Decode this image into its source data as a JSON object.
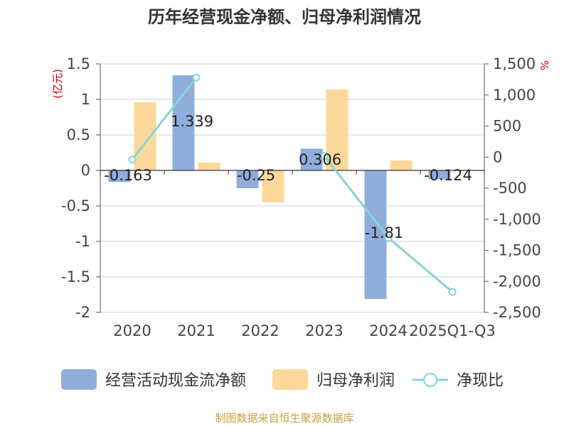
{
  "title": "历年经营现金净额、归母净利润情况",
  "source": "制图数据来自恒生聚源数据库",
  "chart_data": {
    "type": "bar",
    "title": "历年经营现金净额、归母净利润情况",
    "categories": [
      "2020",
      "2021",
      "2022",
      "2023",
      "2024",
      "2025Q1-Q3"
    ],
    "y_left": {
      "unit_label": "(亿元)",
      "ylim": [
        -2,
        1.5
      ],
      "ticks": [
        1.5,
        1,
        0.5,
        0,
        -0.5,
        -1,
        -1.5,
        -2
      ],
      "tick_labels": [
        "1.5",
        "1",
        "0.5",
        "0",
        "-0.5",
        "-1",
        "-1.5",
        "-2"
      ]
    },
    "y_right": {
      "unit_label": "%",
      "ylim": [
        -2500,
        1500
      ],
      "ticks": [
        1500,
        1000,
        500,
        0,
        -500,
        -1000,
        -1500,
        -2000,
        -2500
      ],
      "tick_labels": [
        "1,500",
        "1,000",
        "500",
        "0",
        "-500",
        "-1,000",
        "-1,500",
        "-2,000",
        "-2,500"
      ]
    },
    "grid": true,
    "legend_position": "bottom",
    "series": [
      {
        "name": "经营活动现金流净额",
        "type": "bar",
        "axis": "left",
        "color": "#8faedb",
        "values": [
          -0.163,
          1.339,
          -0.25,
          0.306,
          -1.81,
          -0.124
        ],
        "labels": [
          "-0.163",
          "1.339",
          "-0.25",
          "0.306",
          "-1.81",
          "-0.124"
        ]
      },
      {
        "name": "归母净利润",
        "type": "bar",
        "axis": "left",
        "color": "#fdd89a",
        "values": [
          0.96,
          0.11,
          -0.45,
          1.14,
          0.14,
          null
        ]
      },
      {
        "name": "净现比",
        "type": "line",
        "axis": "right",
        "color": "#87d4d6",
        "values": [
          -40,
          1280,
          null,
          20,
          -1300,
          -2170
        ]
      }
    ]
  }
}
